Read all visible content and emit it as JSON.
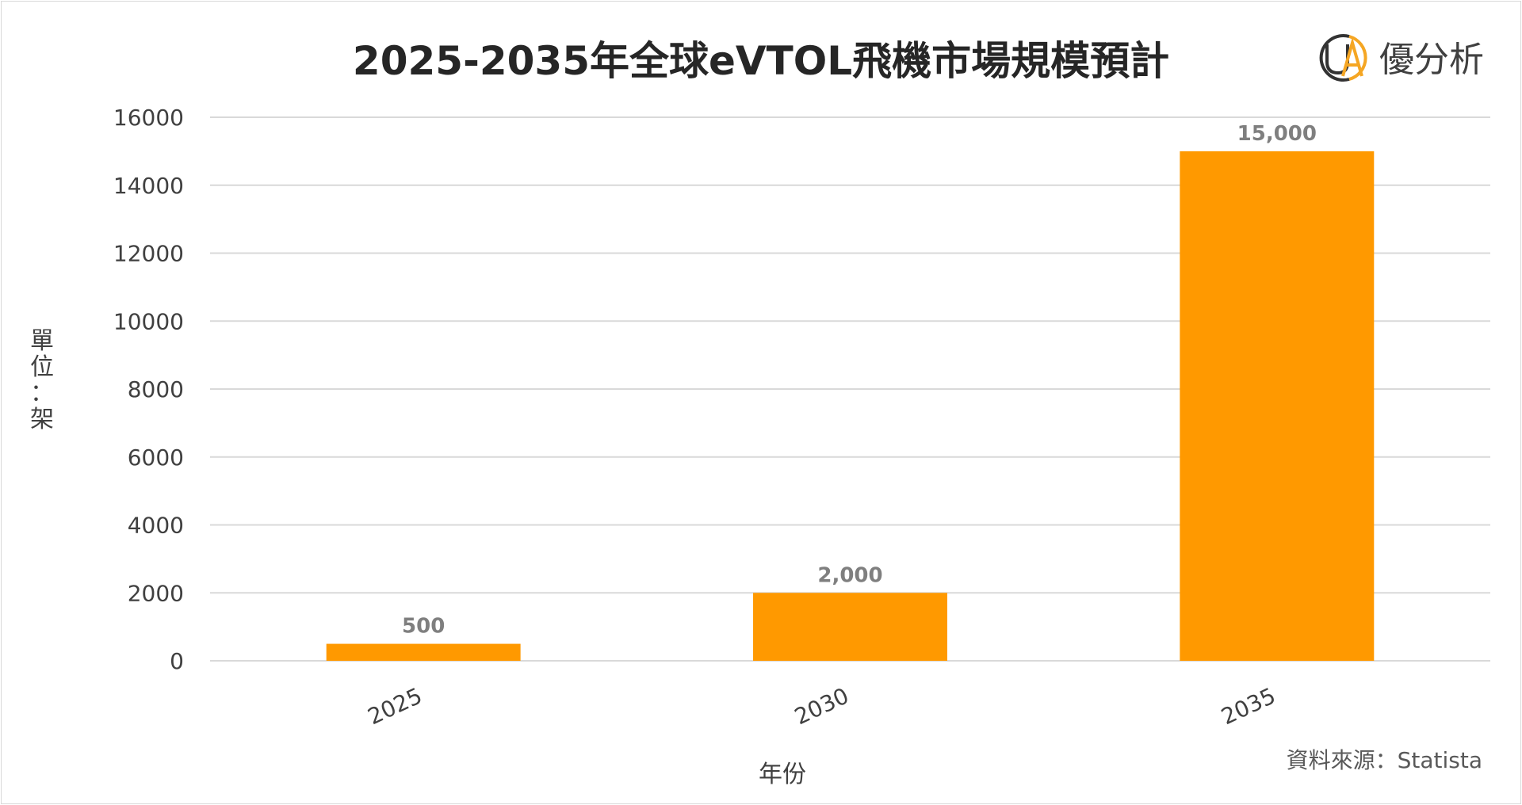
{
  "colors": {
    "bar": "#FF9900",
    "grid": "#d9d9d9",
    "logo_dark": "#333333",
    "logo_accent": "#F5A623"
  },
  "brand": {
    "name": "優分析",
    "logo_letters": "UA",
    "icon": "ua-logo-icon"
  },
  "source": "資料來源：Statista",
  "chart_data": {
    "type": "bar",
    "title": "2025-2035年全球eVTOL飛機市場規模預計",
    "xlabel": "年份",
    "ylabel": [
      "單",
      "位",
      "：",
      "架"
    ],
    "categories": [
      "2025",
      "2030",
      "2035"
    ],
    "values": [
      500,
      2000,
      15000
    ],
    "data_labels": [
      "500",
      "2,000",
      "15,000"
    ],
    "ylim": [
      0,
      16000
    ],
    "yticks": [
      0,
      2000,
      4000,
      6000,
      8000,
      10000,
      12000,
      14000,
      16000
    ],
    "grid": true,
    "legend": "none"
  }
}
